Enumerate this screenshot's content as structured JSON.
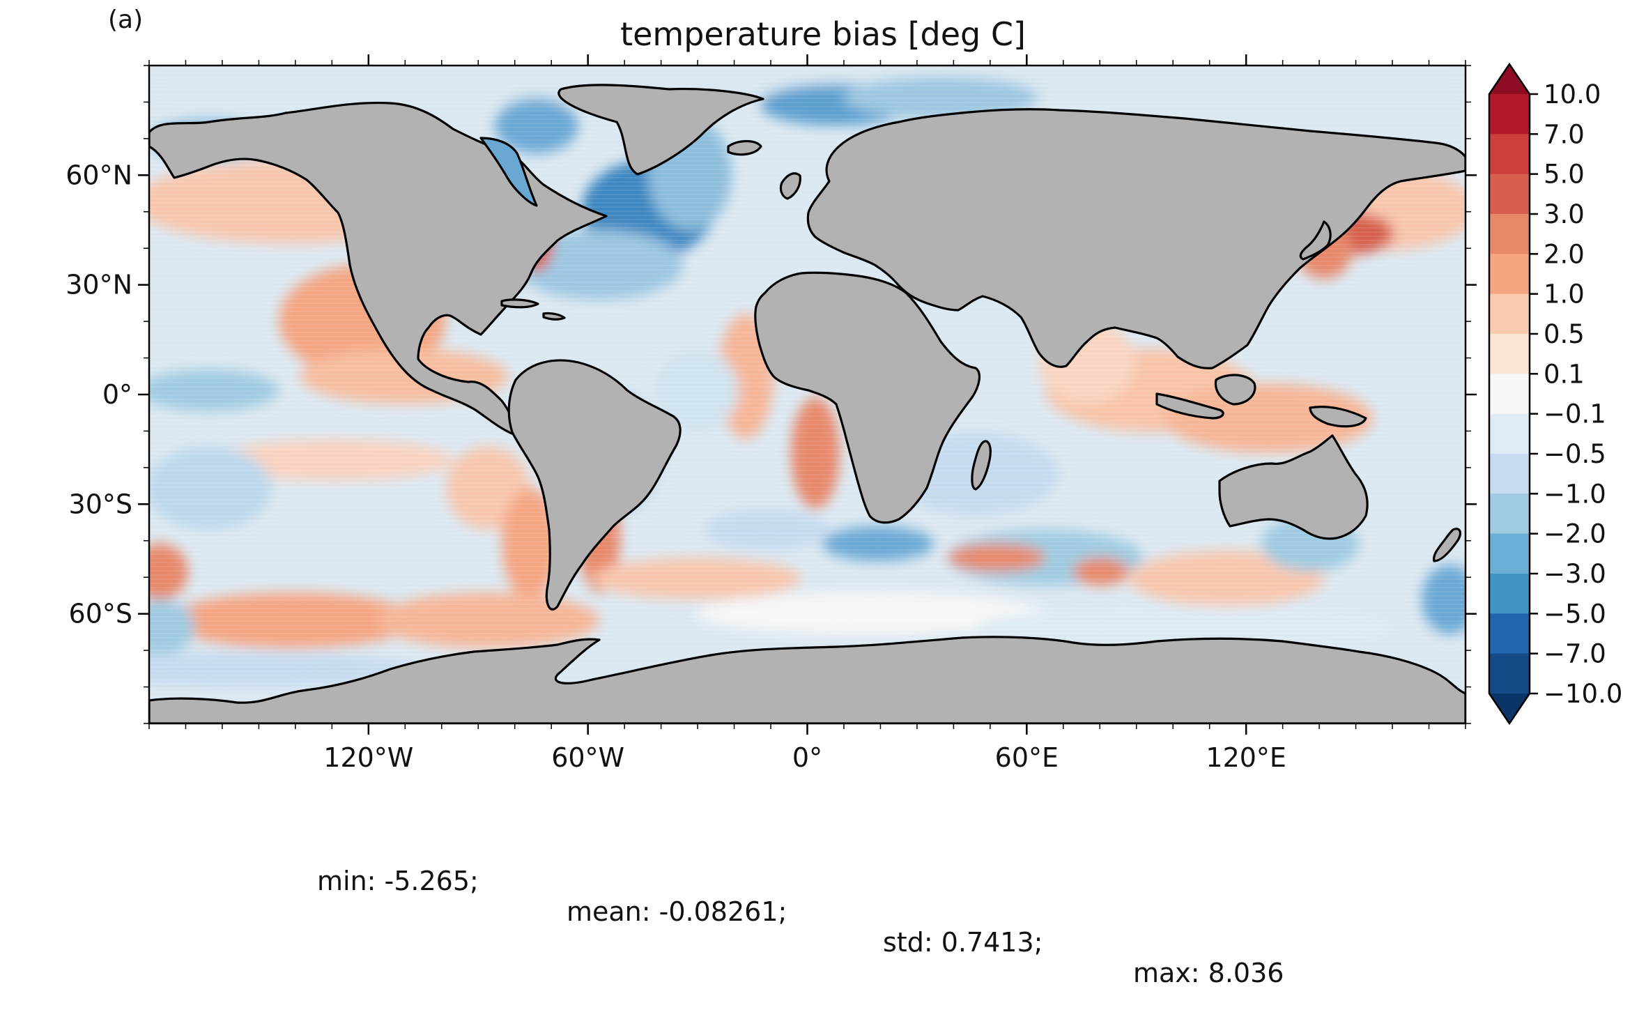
{
  "panel_label": "(a)",
  "title": "temperature bias [deg C]",
  "map": {
    "projection": "equirectangular",
    "lon_range": [
      -180,
      180
    ],
    "lat_range": [
      -90,
      90
    ],
    "land_color": "#b2b2b2",
    "coastline_color": "#000000",
    "lon_ticks": [
      {
        "value": -120,
        "label": "120°W"
      },
      {
        "value": -60,
        "label": "60°W"
      },
      {
        "value": 0,
        "label": "0°"
      },
      {
        "value": 60,
        "label": "60°E"
      },
      {
        "value": 120,
        "label": "120°E"
      }
    ],
    "lat_ticks": [
      {
        "value": 60,
        "label": "60°N"
      },
      {
        "value": 30,
        "label": "30°N"
      },
      {
        "value": 0,
        "label": "0°"
      },
      {
        "value": -30,
        "label": "30°S"
      },
      {
        "value": -60,
        "label": "60°S"
      }
    ]
  },
  "colorbar": {
    "levels": [
      "10.0",
      "7.0",
      "5.0",
      "3.0",
      "2.0",
      "1.0",
      "0.5",
      "0.1",
      "−0.1",
      "−0.5",
      "−1.0",
      "−2.0",
      "−3.0",
      "−5.0",
      "−7.0",
      "−10.0"
    ],
    "colors_top_to_bottom": [
      "#8e0d25",
      "#b2182b",
      "#cb3f3c",
      "#d6604d",
      "#e7886a",
      "#f4a582",
      "#fbcbb0",
      "#fae4d6",
      "#f7f7f7",
      "#deebf2",
      "#c6dbef",
      "#9fcae1",
      "#6baed6",
      "#4393c3",
      "#2166ac",
      "#154a86",
      "#0b3566"
    ],
    "extend": "both"
  },
  "stats": {
    "min": "min: -5.265;",
    "mean": "mean: -0.08261;",
    "std": "std: 0.7413;",
    "max": "max: 8.036"
  }
}
